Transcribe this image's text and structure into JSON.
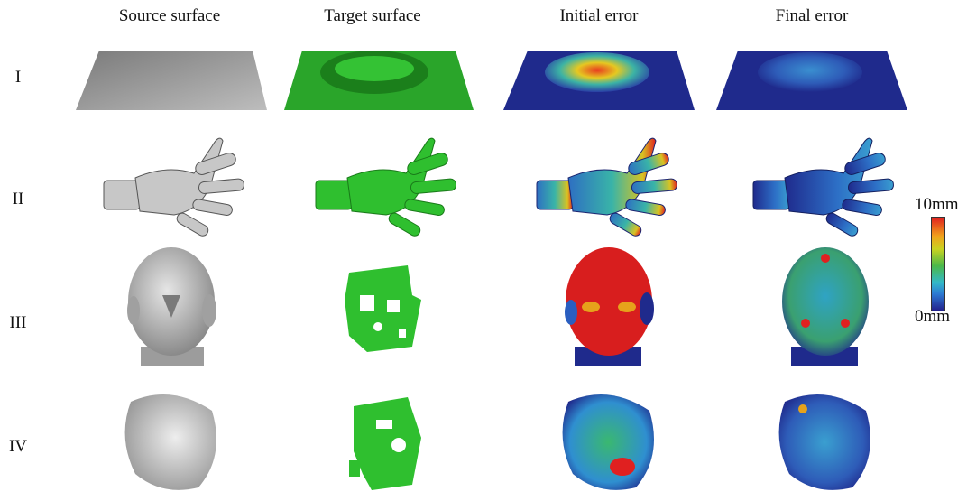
{
  "columns": [
    "Source surface",
    "Target surface",
    "Initial error",
    "Final error"
  ],
  "rows": [
    "I",
    "II",
    "III",
    "IV"
  ],
  "colorbar": {
    "max_label": "10mm",
    "min_label": "0mm"
  },
  "colors": {
    "source": "#b0b0b0",
    "target": "#2aa52a",
    "error_low": "#23218c",
    "error_mid": "#4bb84a",
    "error_high": "#e02020"
  }
}
